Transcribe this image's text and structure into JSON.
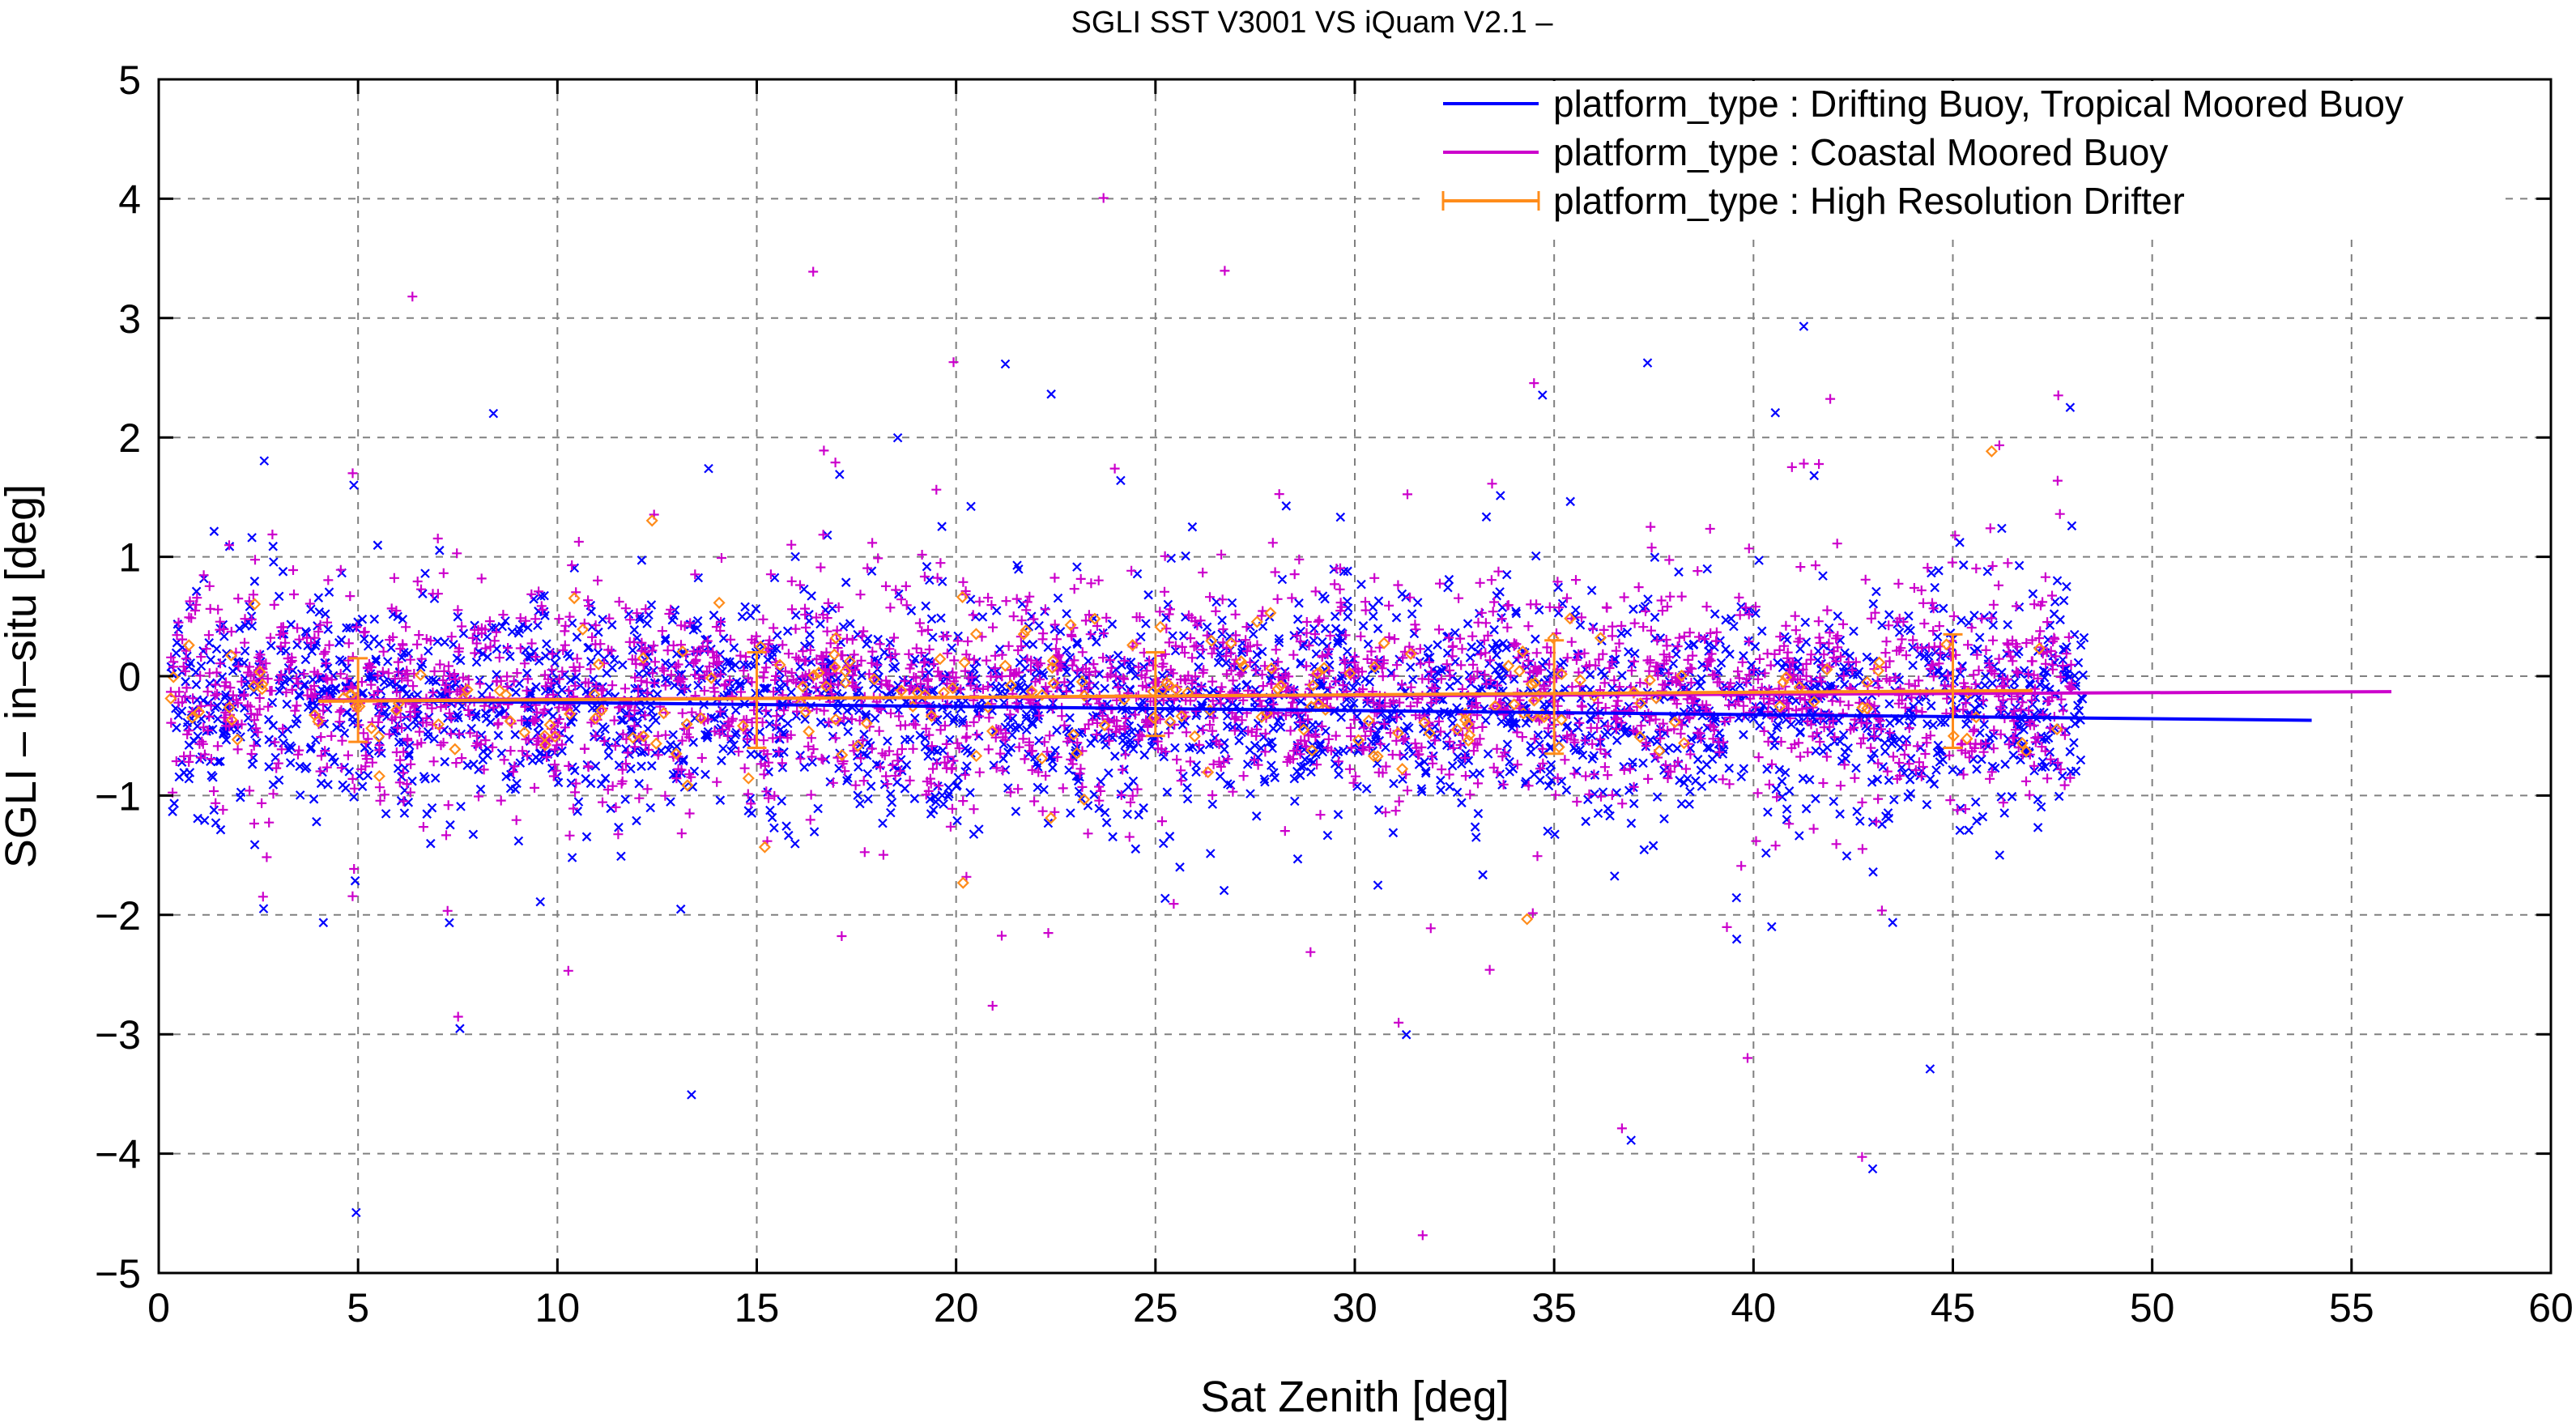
{
  "chart_data": {
    "type": "scatter",
    "title": "SGLI SST V3001 VS iQuam V2.1  –",
    "xlabel": "Sat Zenith [deg]",
    "ylabel": "SGLI – in–situ [deg]",
    "xlim": [
      0,
      60
    ],
    "ylim": [
      -5,
      5
    ],
    "xticks": [
      0,
      5,
      10,
      15,
      20,
      25,
      30,
      35,
      40,
      45,
      50,
      55,
      60
    ],
    "yticks": [
      -5,
      -4,
      -3,
      -2,
      -1,
      0,
      1,
      2,
      3,
      4,
      5
    ],
    "xtick_labels": [
      "0",
      "5",
      "10",
      "15",
      "20",
      "25",
      "30",
      "35",
      "40",
      "45",
      "50",
      "55",
      "60"
    ],
    "ytick_labels": [
      "−5",
      "−4",
      "−3",
      "−2",
      "−1",
      "0",
      "1",
      "2",
      "3",
      "4",
      "5"
    ],
    "grid": true,
    "legend_position": "top-right",
    "series": [
      {
        "name": "platform_type : Drifting Buoy, Tropical Moored Buoy",
        "color": "#0000ff",
        "marker": "x",
        "scatter_x_range": [
          0.3,
          48.3
        ],
        "scatter_center": -0.25,
        "scatter_spread": 0.45,
        "trend_line": {
          "x": [
            4,
            54
          ],
          "y": [
            -0.2,
            -0.37
          ]
        }
      },
      {
        "name": "platform_type : Coastal Moored Buoy",
        "color": "#cc00cc",
        "marker": "+",
        "scatter_x_range": [
          0.3,
          48.0
        ],
        "scatter_center": -0.15,
        "scatter_spread": 0.42,
        "trend_line": {
          "x": [
            4,
            56
          ],
          "y": [
            -0.2,
            -0.13
          ]
        }
      },
      {
        "name": "platform_type : High Resolution Drifter",
        "color": "#ff8c1a",
        "marker": "diamond",
        "scatter_x_range": [
          0.3,
          47.8
        ],
        "scatter_center": -0.2,
        "scatter_spread": 0.3,
        "trend_line": {
          "x": [
            4,
            47
          ],
          "y": [
            -0.21,
            -0.12
          ]
        },
        "error_bars": [
          {
            "x": 5,
            "y": -0.2,
            "low": -0.55,
            "high": 0.15
          },
          {
            "x": 15,
            "y": -0.2,
            "low": -0.6,
            "high": 0.2
          },
          {
            "x": 25,
            "y": -0.15,
            "low": -0.5,
            "high": 0.2
          },
          {
            "x": 35,
            "y": -0.18,
            "low": -0.65,
            "high": 0.3
          },
          {
            "x": 45,
            "y": -0.13,
            "low": -0.6,
            "high": 0.35
          }
        ]
      }
    ]
  }
}
